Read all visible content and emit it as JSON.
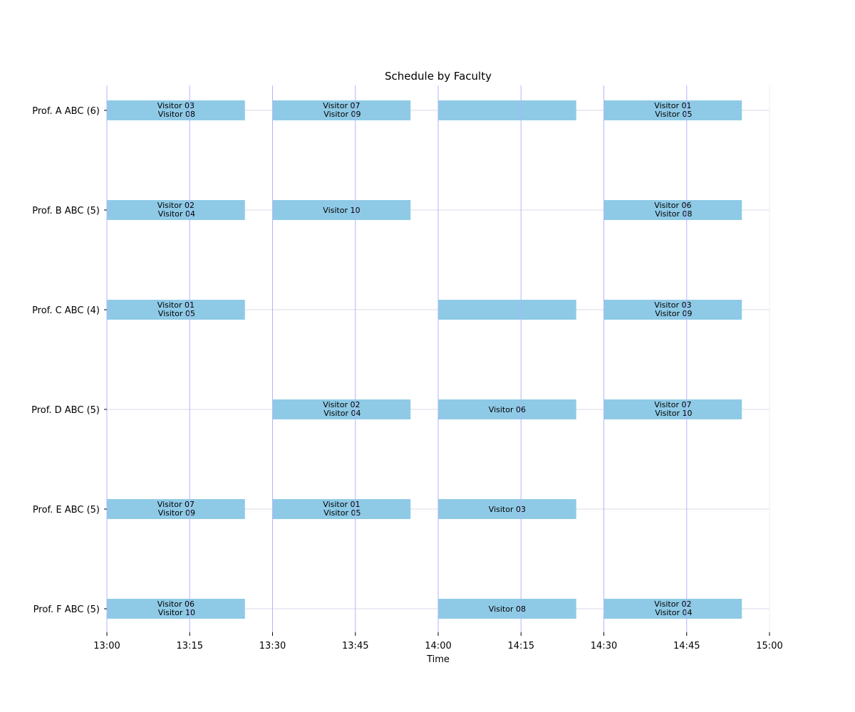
{
  "chart_data": {
    "type": "gantt",
    "title": "Schedule by Faculty",
    "xlabel": "Time",
    "xlim": [
      "13:00",
      "15:00"
    ],
    "x_ticks": [
      "13:00",
      "13:15",
      "13:30",
      "13:45",
      "14:00",
      "14:15",
      "14:30",
      "14:45",
      "15:00"
    ],
    "grid": "on",
    "colors": {
      "bar": "#8ecae6",
      "vgrid": "#b3b3ff",
      "hgrid": "#d9d9e8"
    },
    "rows": [
      {
        "label": "Prof. A ABC (6)",
        "slots": [
          {
            "start": "13:00",
            "end": "13:25",
            "visitors": [
              "Visitor 03",
              "Visitor 08"
            ]
          },
          {
            "start": "13:30",
            "end": "13:55",
            "visitors": [
              "Visitor 07",
              "Visitor 09"
            ]
          },
          {
            "start": "14:00",
            "end": "14:25",
            "visitors": []
          },
          {
            "start": "14:30",
            "end": "14:55",
            "visitors": [
              "Visitor 01",
              "Visitor 05"
            ]
          }
        ]
      },
      {
        "label": "Prof. B ABC (5)",
        "slots": [
          {
            "start": "13:00",
            "end": "13:25",
            "visitors": [
              "Visitor 02",
              "Visitor 04"
            ]
          },
          {
            "start": "13:30",
            "end": "13:55",
            "visitors": [
              "Visitor 10"
            ]
          },
          {
            "start": "14:30",
            "end": "14:55",
            "visitors": [
              "Visitor 06",
              "Visitor 08"
            ]
          }
        ]
      },
      {
        "label": "Prof. C ABC (4)",
        "slots": [
          {
            "start": "13:00",
            "end": "13:25",
            "visitors": [
              "Visitor 01",
              "Visitor 05"
            ]
          },
          {
            "start": "14:00",
            "end": "14:25",
            "visitors": []
          },
          {
            "start": "14:30",
            "end": "14:55",
            "visitors": [
              "Visitor 03",
              "Visitor 09"
            ]
          }
        ]
      },
      {
        "label": "Prof. D ABC (5)",
        "slots": [
          {
            "start": "13:30",
            "end": "13:55",
            "visitors": [
              "Visitor 02",
              "Visitor 04"
            ]
          },
          {
            "start": "14:00",
            "end": "14:25",
            "visitors": [
              "Visitor 06"
            ]
          },
          {
            "start": "14:30",
            "end": "14:55",
            "visitors": [
              "Visitor 07",
              "Visitor 10"
            ]
          }
        ]
      },
      {
        "label": "Prof. E ABC (5)",
        "slots": [
          {
            "start": "13:00",
            "end": "13:25",
            "visitors": [
              "Visitor 07",
              "Visitor 09"
            ]
          },
          {
            "start": "13:30",
            "end": "13:55",
            "visitors": [
              "Visitor 01",
              "Visitor 05"
            ]
          },
          {
            "start": "14:00",
            "end": "14:25",
            "visitors": [
              "Visitor 03"
            ]
          }
        ]
      },
      {
        "label": "Prof. F ABC (5)",
        "slots": [
          {
            "start": "13:00",
            "end": "13:25",
            "visitors": [
              "Visitor 06",
              "Visitor 10"
            ]
          },
          {
            "start": "14:00",
            "end": "14:25",
            "visitors": [
              "Visitor 08"
            ]
          },
          {
            "start": "14:30",
            "end": "14:55",
            "visitors": [
              "Visitor 02",
              "Visitor 04"
            ]
          }
        ]
      }
    ]
  }
}
